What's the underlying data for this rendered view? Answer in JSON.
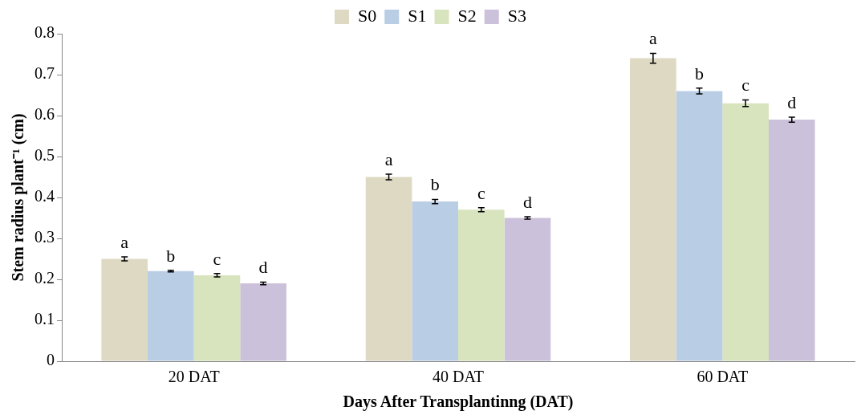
{
  "chart_data": {
    "type": "bar",
    "xlabel": "Days After Transplantinng (DAT)",
    "ylabel": "Stem radius plant⁻¹ (cm)",
    "categories": [
      "20 DAT",
      "40 DAT",
      "60 DAT"
    ],
    "series": [
      {
        "name": "S0",
        "color": "#ddd9c3",
        "values": [
          0.25,
          0.45,
          0.74
        ],
        "errors": [
          0.005,
          0.007,
          0.012
        ],
        "value_labels": [
          "a",
          "a",
          "a"
        ]
      },
      {
        "name": "S1",
        "color": "#b9cde5",
        "values": [
          0.22,
          0.39,
          0.66
        ],
        "errors": [
          0.002,
          0.005,
          0.007
        ],
        "value_labels": [
          "b",
          "b",
          "b"
        ]
      },
      {
        "name": "S2",
        "color": "#d7e4bd",
        "values": [
          0.21,
          0.37,
          0.63
        ],
        "errors": [
          0.004,
          0.005,
          0.008
        ],
        "value_labels": [
          "c",
          "c",
          "c"
        ]
      },
      {
        "name": "S3",
        "color": "#ccc1da",
        "values": [
          0.19,
          0.35,
          0.59
        ],
        "errors": [
          0.003,
          0.003,
          0.006
        ],
        "value_labels": [
          "d",
          "d",
          "d"
        ]
      }
    ],
    "ylim": [
      0,
      0.8
    ],
    "yticks": [
      0,
      0.1,
      0.2,
      0.3,
      0.4,
      0.5,
      0.6,
      0.7,
      0.8
    ],
    "grid": false,
    "legend": "top"
  }
}
